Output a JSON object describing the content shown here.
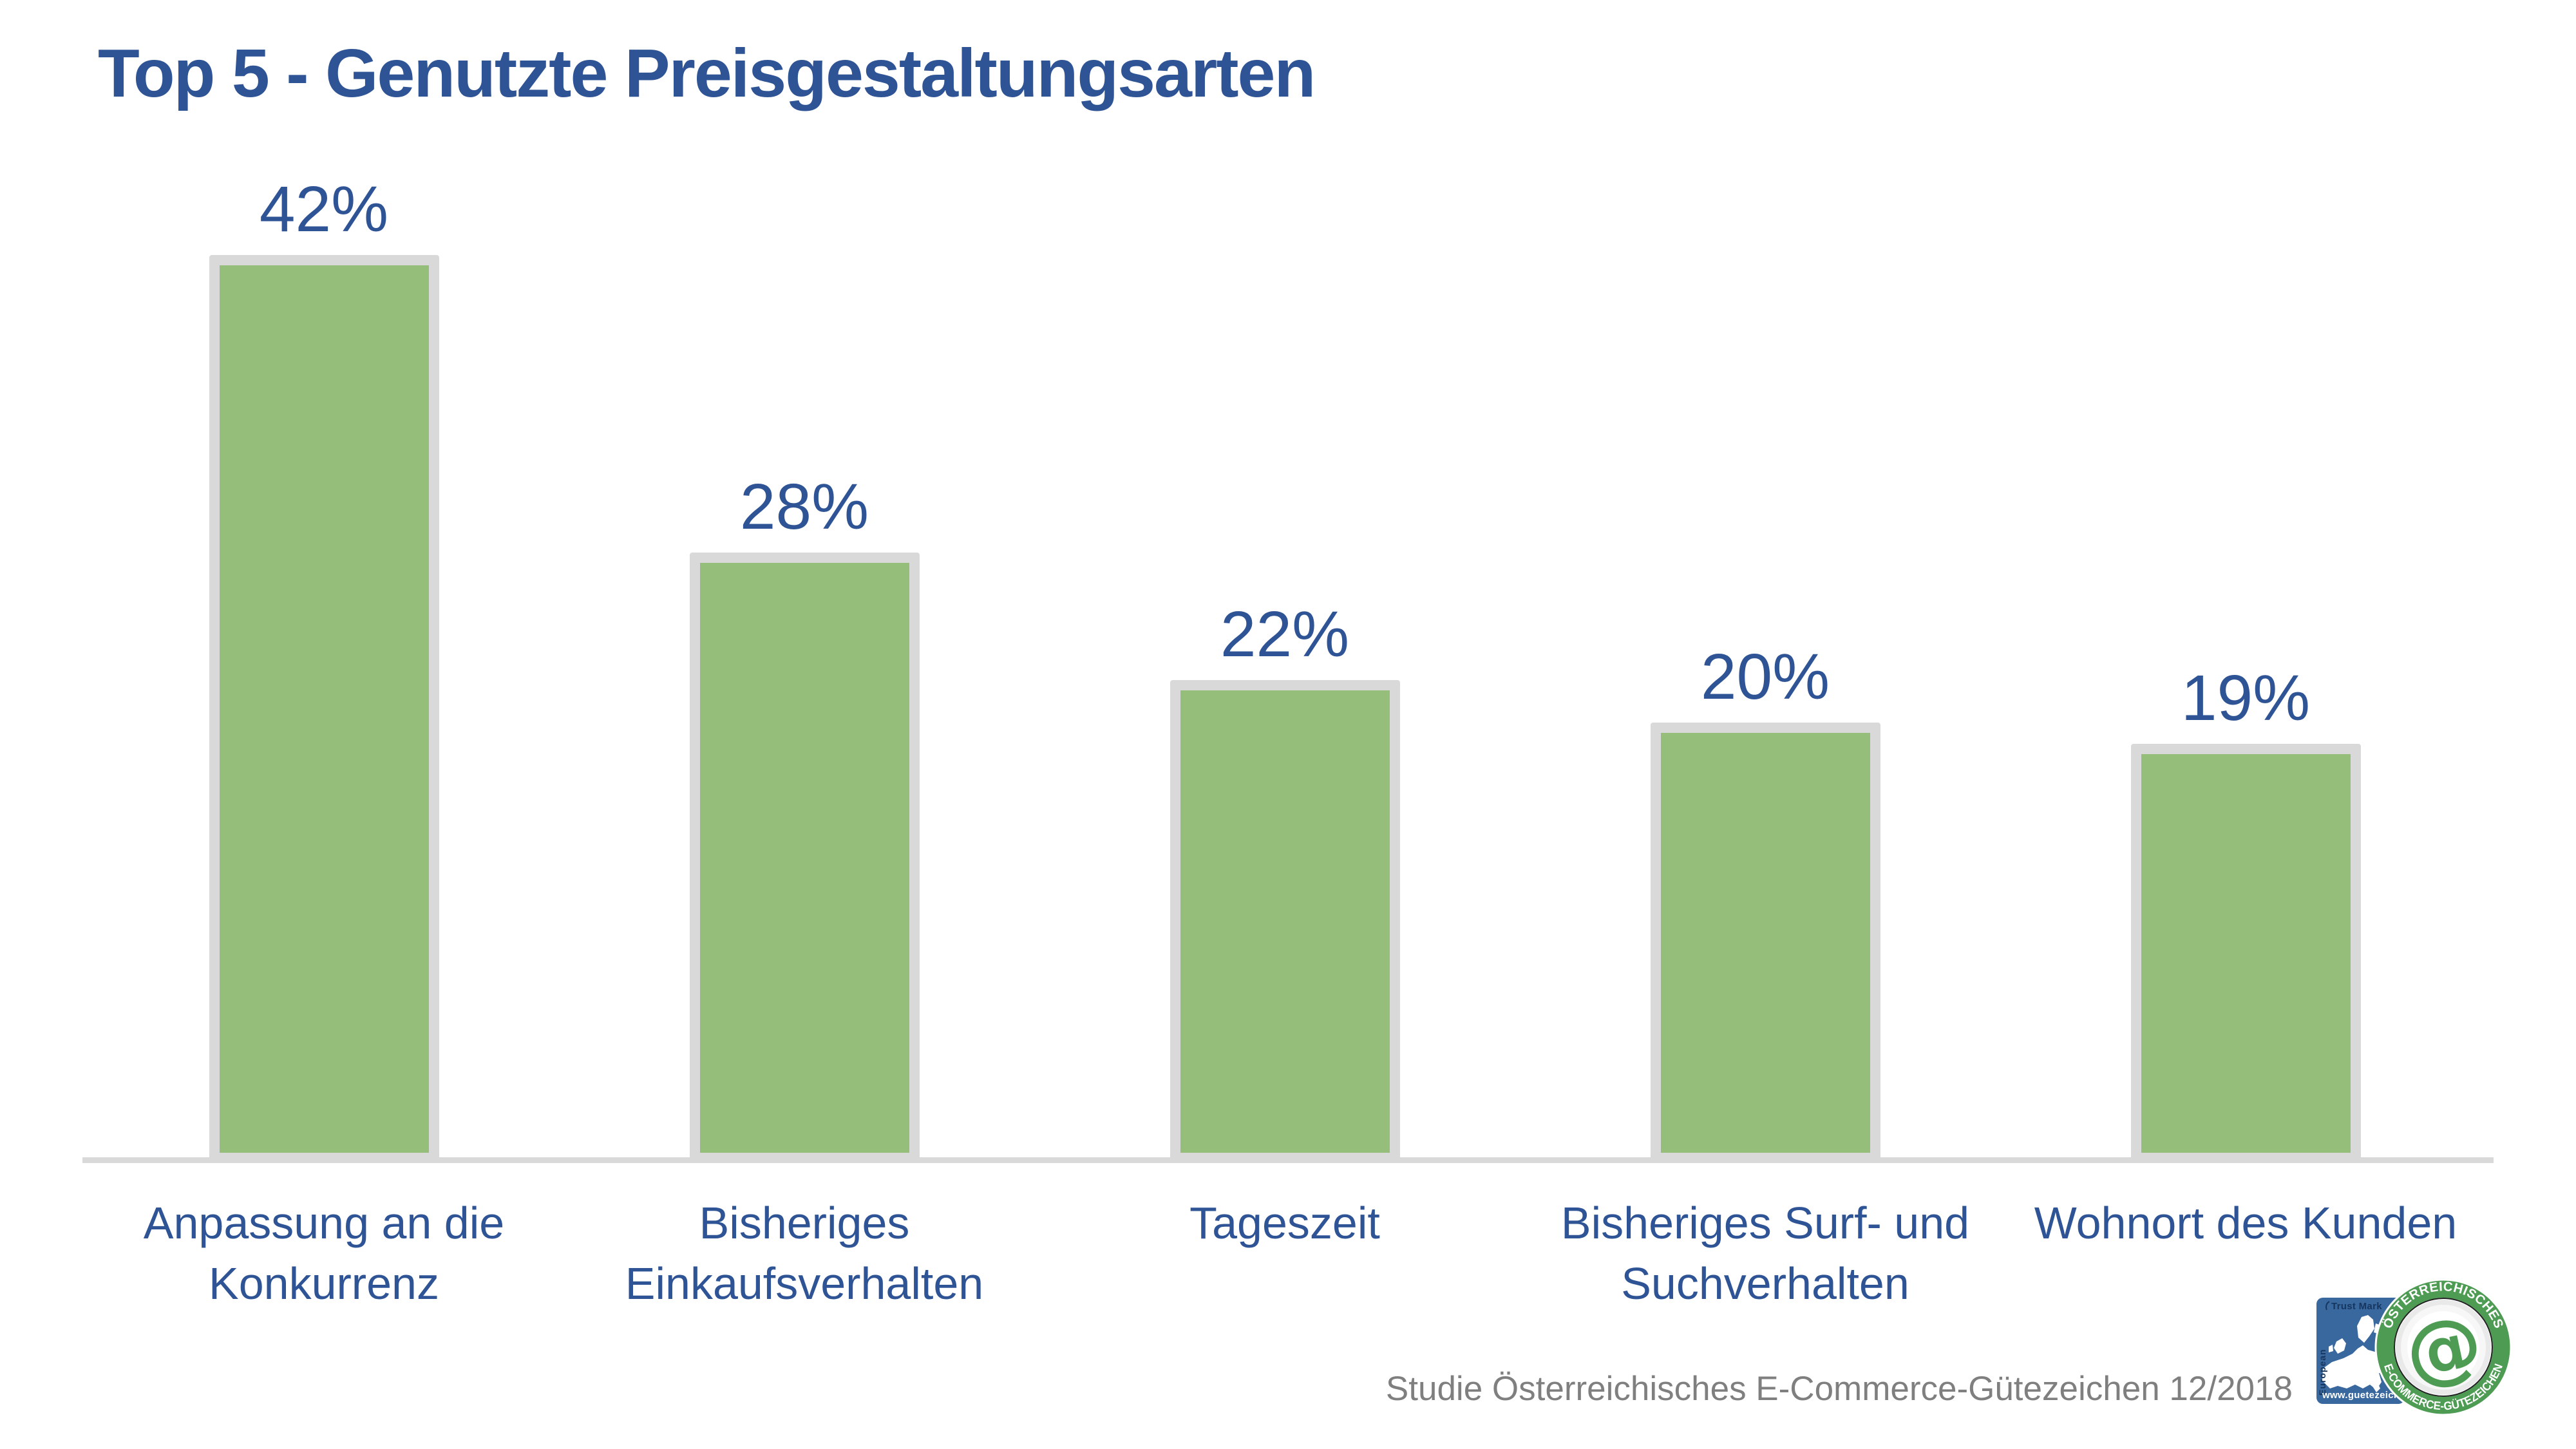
{
  "slide": {
    "title": "Top 5 - Genutzte Preisgestaltungsarten",
    "source_note": "Studie Österreichisches E-Commerce-Gütezeichen 12/2018"
  },
  "chart_data": {
    "type": "bar",
    "title": "Top 5 - Genutzte Preisgestaltungsarten",
    "categories": [
      "Anpassung an die Konkurrenz",
      "Bisheriges Einkaufsverhalten",
      "Tageszeit",
      "Bisheriges Surf- und Suchverhalten",
      "Wohnort des Kunden"
    ],
    "category_lines": [
      [
        "Anpassung an die",
        "Konkurrenz"
      ],
      [
        "Bisheriges",
        "Einkaufsverhalten"
      ],
      [
        "Tageszeit"
      ],
      [
        "Bisheriges Surf- und",
        "Suchverhalten"
      ],
      [
        "Wohnort des Kunden"
      ]
    ],
    "values": [
      42,
      28,
      22,
      20,
      19
    ],
    "value_labels": [
      "42%",
      "28%",
      "22%",
      "20%",
      "19%"
    ],
    "unit": "%",
    "xlabel": "",
    "ylabel": "",
    "ylim": [
      0,
      45
    ],
    "grid": false,
    "legend": false,
    "bar_color": "#95BE7B",
    "bar_border_color": "#D9D9D9",
    "axis_line_color": "#D9D9D9",
    "label_color": "#2F5496",
    "source_note_color": "#7F7F7F"
  },
  "logo": {
    "trust_mark_label": "Trust Mark",
    "european_label": "European",
    "website_label": "www.guetezeichen.at",
    "ring_top_label": "ÖSTERREICHISCHES",
    "ring_bottom_label": "E-COMMERCE-GÜTEZEICHEN",
    "at_symbol": "@",
    "seal_green": "#4E9B54",
    "box_blue": "#39689E"
  }
}
